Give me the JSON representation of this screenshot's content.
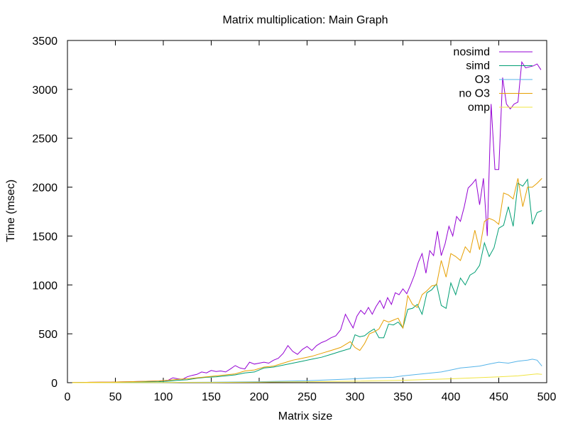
{
  "chart_data": {
    "type": "line",
    "title": "Matrix multiplication: Main Graph",
    "xlabel": "Matrix size",
    "ylabel": "Time (msec)",
    "xlim": [
      0,
      500
    ],
    "ylim": [
      0,
      3500
    ],
    "xticks": [
      0,
      50,
      100,
      150,
      200,
      250,
      300,
      350,
      400,
      450,
      500
    ],
    "yticks": [
      0,
      500,
      1000,
      1500,
      2000,
      2500,
      3000,
      3500
    ],
    "grid": false,
    "legend_position": "top-right",
    "series": [
      {
        "name": "nosimd",
        "color": "#9400d3",
        "x": [
          5,
          15,
          25,
          35,
          45,
          55,
          65,
          75,
          85,
          95,
          105,
          110,
          115,
          120,
          125,
          130,
          135,
          140,
          145,
          150,
          155,
          160,
          165,
          170,
          175,
          180,
          185,
          190,
          195,
          200,
          205,
          210,
          215,
          220,
          225,
          230,
          235,
          240,
          245,
          250,
          255,
          260,
          265,
          270,
          275,
          280,
          285,
          290,
          295,
          298,
          302,
          306,
          310,
          314,
          318,
          322,
          326,
          330,
          334,
          338,
          342,
          346,
          350,
          354,
          358,
          362,
          366,
          370,
          374,
          378,
          382,
          386,
          390,
          394,
          398,
          402,
          406,
          410,
          414,
          418,
          422,
          426,
          430,
          434,
          438,
          442,
          446,
          450,
          454,
          458,
          462,
          466,
          470,
          474,
          478,
          482,
          486,
          490,
          494
        ],
        "y": [
          2,
          3,
          4,
          5,
          6,
          8,
          10,
          12,
          15,
          18,
          25,
          50,
          40,
          35,
          60,
          75,
          85,
          110,
          100,
          125,
          115,
          120,
          110,
          140,
          175,
          150,
          140,
          210,
          190,
          200,
          210,
          200,
          230,
          250,
          300,
          380,
          320,
          290,
          340,
          370,
          330,
          380,
          410,
          430,
          460,
          480,
          540,
          700,
          610,
          560,
          680,
          740,
          700,
          770,
          700,
          780,
          840,
          760,
          870,
          800,
          920,
          900,
          960,
          910,
          1000,
          1100,
          1230,
          1320,
          1120,
          1350,
          1300,
          1550,
          1300,
          1420,
          1600,
          1500,
          1700,
          1650,
          1800,
          1990,
          2030,
          2080,
          1820,
          2090,
          1500,
          2850,
          2180,
          2180,
          3120,
          2850,
          2800,
          2850,
          2870,
          3280,
          3220,
          3230,
          3240,
          3260,
          3200
        ],
        "xs": [
          5,
          15,
          25,
          35,
          45,
          55,
          65,
          75,
          85,
          95,
          105,
          110,
          115,
          120,
          125,
          130,
          135,
          140,
          145,
          150,
          155,
          160,
          165,
          170,
          175,
          180,
          185,
          190,
          195,
          200,
          205,
          210,
          215,
          220,
          225,
          230,
          235,
          240,
          245,
          250,
          255,
          260,
          265,
          270,
          275,
          280,
          285,
          290,
          295,
          298,
          302,
          306,
          310,
          314,
          318,
          322,
          326,
          330,
          334,
          338,
          342,
          346,
          350,
          354,
          358,
          362,
          366,
          370,
          374,
          378,
          382,
          386,
          390,
          394,
          398,
          402,
          406,
          410,
          414,
          418,
          422,
          426,
          430,
          434,
          438,
          442,
          446,
          450,
          454,
          458,
          462,
          466,
          470,
          474,
          478,
          482,
          486,
          490,
          494
        ]
      },
      {
        "name": "simd",
        "color": "#009e73",
        "x": [
          5,
          15,
          25,
          35,
          45,
          55,
          65,
          75,
          85,
          95,
          105,
          115,
          125,
          135,
          145,
          155,
          165,
          175,
          185,
          195,
          205,
          215,
          225,
          235,
          245,
          255,
          265,
          275,
          285,
          295,
          300,
          305,
          310,
          315,
          320,
          325,
          330,
          335,
          340,
          345,
          350,
          355,
          360,
          365,
          370,
          375,
          380,
          385,
          390,
          395,
          400,
          405,
          410,
          415,
          420,
          425,
          430,
          435,
          440,
          445,
          450,
          455,
          460,
          465,
          470,
          475,
          480,
          485,
          490,
          495
        ],
        "y": [
          1,
          2,
          2,
          3,
          3,
          4,
          5,
          6,
          8,
          10,
          15,
          25,
          30,
          45,
          55,
          60,
          70,
          80,
          100,
          110,
          150,
          160,
          180,
          200,
          220,
          240,
          260,
          290,
          320,
          350,
          490,
          470,
          480,
          520,
          550,
          460,
          460,
          600,
          590,
          620,
          560,
          750,
          760,
          800,
          700,
          920,
          950,
          1010,
          790,
          760,
          1020,
          900,
          1070,
          1000,
          1100,
          1130,
          1200,
          1430,
          1290,
          1380,
          1580,
          1610,
          1800,
          1600,
          2040,
          2010,
          2080,
          1620,
          1740,
          1760
        ],
        "xs": [
          5,
          15,
          25,
          35,
          45,
          55,
          65,
          75,
          85,
          95,
          105,
          115,
          125,
          135,
          145,
          155,
          165,
          175,
          185,
          195,
          205,
          215,
          225,
          235,
          245,
          255,
          265,
          275,
          285,
          295,
          300,
          305,
          310,
          315,
          320,
          325,
          330,
          335,
          340,
          345,
          350,
          355,
          360,
          365,
          370,
          375,
          380,
          385,
          390,
          395,
          400,
          405,
          410,
          415,
          420,
          425,
          430,
          435,
          440,
          445,
          450,
          455,
          460,
          465,
          470,
          475,
          480,
          485,
          490,
          495
        ]
      },
      {
        "name": "O3",
        "color": "#56b4e9",
        "x": [
          5,
          50,
          100,
          150,
          200,
          250,
          300,
          320,
          340,
          350,
          360,
          370,
          380,
          390,
          400,
          410,
          420,
          430,
          440,
          450,
          460,
          470,
          480,
          485,
          490,
          495
        ],
        "y": [
          0,
          1,
          2,
          5,
          10,
          20,
          40,
          50,
          55,
          70,
          80,
          90,
          100,
          110,
          130,
          150,
          160,
          170,
          190,
          210,
          200,
          220,
          230,
          240,
          230,
          170
        ]
      },
      {
        "name": "no O3",
        "color": "#e69f00",
        "x": [
          5,
          15,
          25,
          35,
          45,
          55,
          65,
          75,
          85,
          95,
          105,
          115,
          125,
          135,
          145,
          155,
          165,
          175,
          185,
          195,
          205,
          215,
          225,
          235,
          245,
          255,
          265,
          275,
          285,
          295,
          300,
          305,
          310,
          315,
          320,
          325,
          330,
          335,
          340,
          345,
          350,
          355,
          360,
          365,
          370,
          375,
          380,
          385,
          390,
          395,
          400,
          405,
          410,
          415,
          420,
          425,
          430,
          435,
          440,
          445,
          450,
          455,
          460,
          465,
          470,
          475,
          480,
          485,
          490,
          495
        ],
        "y": [
          3,
          3,
          4,
          5,
          6,
          8,
          10,
          12,
          15,
          18,
          25,
          35,
          40,
          50,
          60,
          70,
          80,
          90,
          120,
          130,
          160,
          170,
          200,
          230,
          250,
          270,
          300,
          330,
          360,
          420,
          360,
          330,
          400,
          500,
          520,
          550,
          640,
          620,
          640,
          660,
          560,
          890,
          800,
          770,
          900,
          940,
          990,
          1000,
          1250,
          1080,
          1320,
          1290,
          1250,
          1390,
          1330,
          1560,
          1360,
          1650,
          1680,
          1660,
          1620,
          1940,
          1920,
          1880,
          2090,
          1800,
          2000,
          2000,
          2040,
          2090
        ]
      },
      {
        "name": "omp",
        "color": "#f0e442",
        "x": [
          5,
          50,
          100,
          150,
          200,
          250,
          300,
          350,
          400,
          450,
          470,
          480,
          490,
          495
        ],
        "y": [
          0,
          1,
          2,
          3,
          6,
          10,
          15,
          25,
          40,
          60,
          70,
          80,
          90,
          85
        ]
      }
    ]
  }
}
